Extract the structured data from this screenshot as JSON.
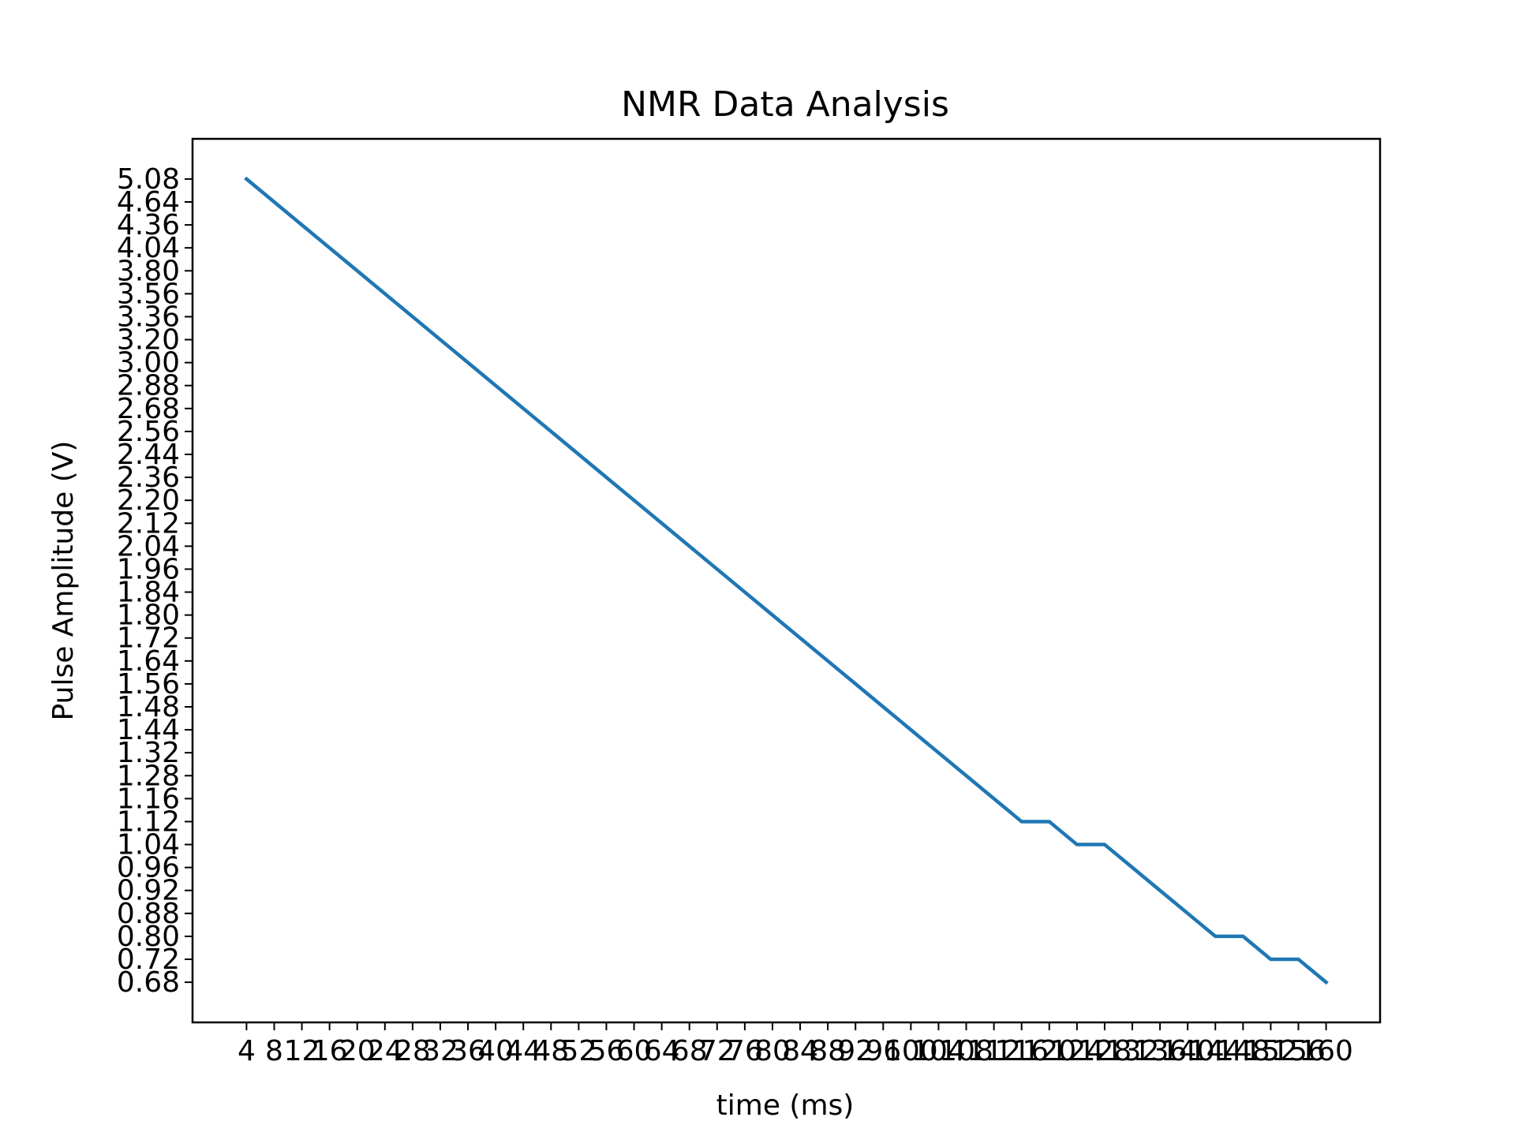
{
  "chart_data": {
    "type": "line",
    "title": "NMR Data Analysis",
    "xlabel": "time (ms)",
    "ylabel": "Pulse Amplitude (V)",
    "x_tick_labels": [
      "4",
      "8",
      "12",
      "16",
      "20",
      "24",
      "28",
      "32",
      "36",
      "40",
      "44",
      "48",
      "52",
      "56",
      "60",
      "64",
      "68",
      "72",
      "76",
      "80",
      "84",
      "88",
      "92",
      "96",
      "100",
      "104",
      "108",
      "112",
      "116",
      "120",
      "124",
      "128",
      "132",
      "136",
      "140",
      "144",
      "148",
      "152",
      "156",
      "160"
    ],
    "y_tick_labels": [
      "0.68",
      "0.72",
      "0.80",
      "0.88",
      "0.92",
      "0.96",
      "1.04",
      "1.12",
      "1.16",
      "1.28",
      "1.32",
      "1.44",
      "1.48",
      "1.56",
      "1.64",
      "1.72",
      "1.80",
      "1.84",
      "1.96",
      "2.04",
      "2.12",
      "2.20",
      "2.36",
      "2.44",
      "2.56",
      "2.68",
      "2.88",
      "3.00",
      "3.20",
      "3.36",
      "3.56",
      "3.80",
      "4.04",
      "4.36",
      "4.64",
      "5.08"
    ],
    "series": [
      {
        "color": "#1f77b4",
        "x": [
          4,
          8,
          12,
          16,
          20,
          24,
          28,
          32,
          36,
          40,
          44,
          48,
          52,
          56,
          60,
          64,
          68,
          72,
          76,
          80,
          84,
          88,
          92,
          96,
          100,
          104,
          108,
          112,
          116,
          120,
          124,
          128,
          132,
          136,
          140,
          144,
          148,
          152,
          156,
          160
        ],
        "y": [
          5.08,
          4.64,
          4.36,
          4.04,
          3.8,
          3.56,
          3.36,
          3.2,
          3.0,
          2.88,
          2.68,
          2.56,
          2.44,
          2.36,
          2.2,
          2.12,
          2.04,
          1.96,
          1.84,
          1.8,
          1.72,
          1.64,
          1.56,
          1.48,
          1.44,
          1.32,
          1.28,
          1.16,
          1.12,
          1.12,
          1.04,
          1.04,
          0.96,
          0.92,
          0.88,
          0.8,
          0.8,
          0.72,
          0.72,
          0.68
        ]
      }
    ],
    "grid": false,
    "legend": "none"
  }
}
